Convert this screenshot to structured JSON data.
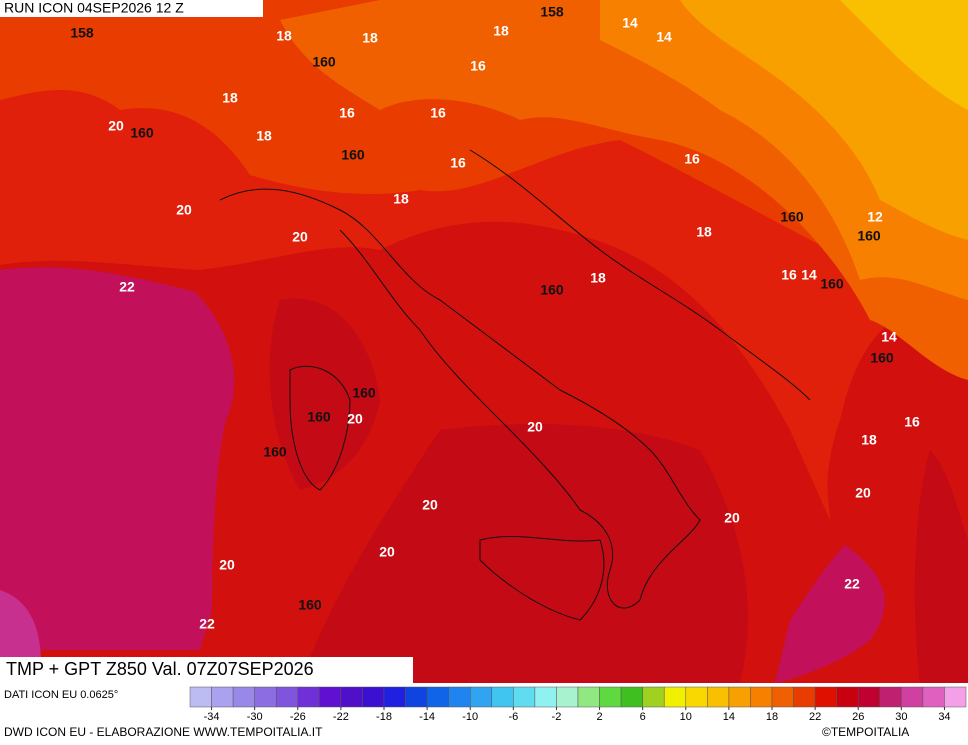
{
  "header": {
    "run": "RUN ICON 04SEP2026 12 Z"
  },
  "map": {
    "title": "TMP + GPT Z850 Val. 07Z07SEP2026",
    "contour_labels": [
      "158",
      "18",
      "18",
      "158",
      "14",
      "14",
      "18",
      "160",
      "16",
      "18",
      "20",
      "160",
      "16",
      "16",
      "18",
      "160",
      "16",
      "16",
      "20",
      "18",
      "160",
      "12",
      "160",
      "20",
      "18",
      "22",
      "16",
      "14",
      "160",
      "18",
      "160",
      "14",
      "160",
      "160",
      "160",
      "20",
      "20",
      "16",
      "18",
      "160",
      "20",
      "20",
      "20",
      "20",
      "20",
      "22",
      "160",
      "22"
    ]
  },
  "legend": {
    "ticks": [
      -34,
      -30,
      -26,
      -22,
      -18,
      -14,
      -10,
      -6,
      -2,
      2,
      6,
      10,
      14,
      18,
      22,
      26,
      30,
      34
    ],
    "colors": [
      "#bcbcf2",
      "#aaa2ee",
      "#9a88e8",
      "#8c6ee2",
      "#7e55dc",
      "#7030d8",
      "#6010d0",
      "#5010c8",
      "#3c10d0",
      "#2020e0",
      "#1044e0",
      "#1064e8",
      "#2084f0",
      "#30a4f0",
      "#40c4f0",
      "#60dcf0",
      "#90f2f0",
      "#a8f2d0",
      "#90e880",
      "#60d840",
      "#40c020",
      "#a0d020",
      "#f0f000",
      "#f8d800",
      "#f8c000",
      "#f8a000",
      "#f88000",
      "#f06000",
      "#e83c00",
      "#e01000",
      "#c80010",
      "#c00030",
      "#c02070",
      "#d040a0",
      "#e060c0",
      "#f4a0e8"
    ]
  },
  "footer": {
    "source": "DATI ICON EU 0.0625°",
    "credit": "DWD ICON EU - ELABORAZIONE WWW.TEMPOITALIA.IT",
    "copyright": "©TEMPOITALIA"
  }
}
